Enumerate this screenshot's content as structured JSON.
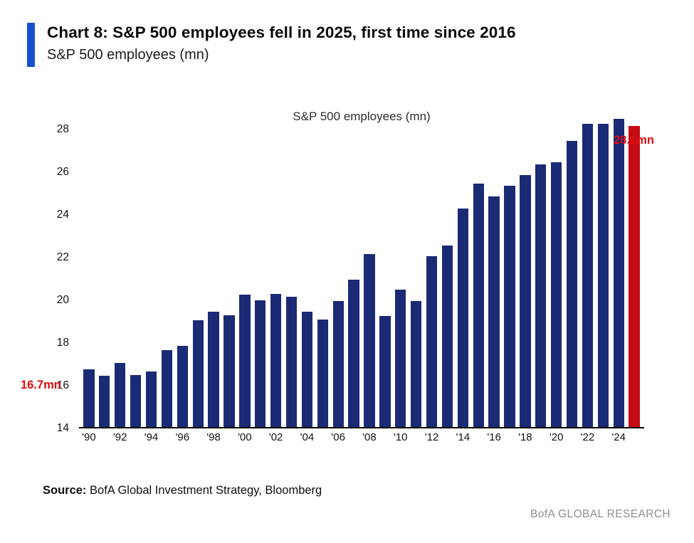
{
  "header": {
    "title": "Chart 8: S&P 500 employees fell in 2025, first time since 2016",
    "subtitle": "S&P 500 employees (mn)"
  },
  "chart_data": {
    "type": "bar",
    "title": "S&P 500 employees (mn)",
    "x": [
      1990,
      1991,
      1992,
      1993,
      1994,
      1995,
      1996,
      1997,
      1998,
      1999,
      2000,
      2001,
      2002,
      2003,
      2004,
      2005,
      2006,
      2007,
      2008,
      2009,
      2010,
      2011,
      2012,
      2013,
      2014,
      2015,
      2016,
      2017,
      2018,
      2019,
      2020,
      2021,
      2022,
      2023,
      2024,
      2025
    ],
    "values": [
      16.7,
      16.4,
      17.0,
      16.45,
      16.6,
      17.6,
      17.8,
      19.0,
      19.4,
      19.25,
      20.2,
      19.95,
      20.25,
      20.1,
      19.4,
      19.05,
      19.9,
      20.9,
      22.1,
      19.2,
      20.45,
      19.9,
      22.0,
      22.5,
      24.25,
      25.4,
      24.8,
      25.3,
      25.8,
      26.3,
      26.4,
      27.4,
      28.2,
      28.2,
      28.45,
      28.1
    ],
    "tick_every": 2,
    "tick_labels": [
      "'90",
      "'92",
      "'94",
      "'96",
      "'98",
      "'00",
      "'02",
      "'04",
      "'06",
      "'08",
      "'10",
      "'12",
      "'14",
      "'16",
      "'18",
      "'20",
      "'22",
      "'24"
    ],
    "ylim": [
      14,
      28
    ],
    "yticks": [
      14,
      16,
      18,
      20,
      22,
      24,
      26,
      28
    ],
    "grid": "off",
    "legend": "none",
    "bar_color": "#1a2a75",
    "highlight_color": "#c60c13",
    "highlight_index": 35,
    "annotation_color": "#e00c0c",
    "annotations": [
      {
        "text": "16.7mn",
        "value": 16.7,
        "anchor": "first"
      },
      {
        "text": "28.1mn",
        "value": 28.1,
        "anchor": "last"
      }
    ]
  },
  "footer": {
    "source_label": "Source:",
    "source_text": " BofA Global Investment Strategy, Bloomberg",
    "brand": "BofA GLOBAL RESEARCH"
  }
}
